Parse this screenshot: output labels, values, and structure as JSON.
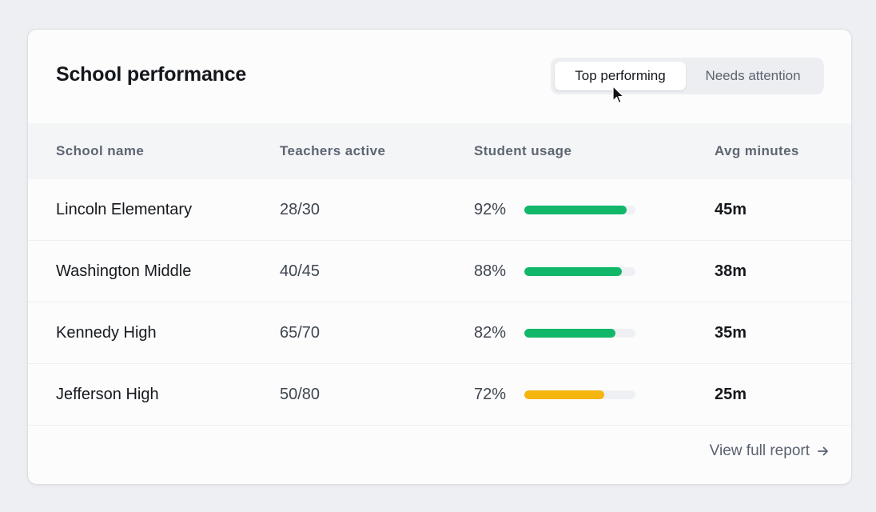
{
  "card": {
    "title": "School performance"
  },
  "filter": {
    "options": [
      {
        "label": "Top performing",
        "selected": true
      },
      {
        "label": "Needs attention",
        "selected": false
      }
    ]
  },
  "table": {
    "columns": [
      "School name",
      "Teachers active",
      "Student usage",
      "Avg minutes"
    ],
    "rows": [
      {
        "name": "Lincoln Elementary",
        "teachers": "28/30",
        "usage_label": "92%",
        "usage": 92,
        "avg": "45m",
        "status": "good"
      },
      {
        "name": "Washington Middle",
        "teachers": "40/45",
        "usage_label": "88%",
        "usage": 88,
        "avg": "38m",
        "status": "good"
      },
      {
        "name": "Kennedy High",
        "teachers": "65/70",
        "usage_label": "82%",
        "usage": 82,
        "avg": "35m",
        "status": "good"
      },
      {
        "name": "Jefferson High",
        "teachers": "50/80",
        "usage_label": "72%",
        "usage": 72,
        "avg": "25m",
        "status": "warning"
      }
    ]
  },
  "footer": {
    "link_label": "View full report",
    "link_icon": "arrow-right-icon"
  },
  "colors": {
    "good": "#12b76a",
    "warning": "#f5b50f",
    "track": "#eef0f3"
  }
}
